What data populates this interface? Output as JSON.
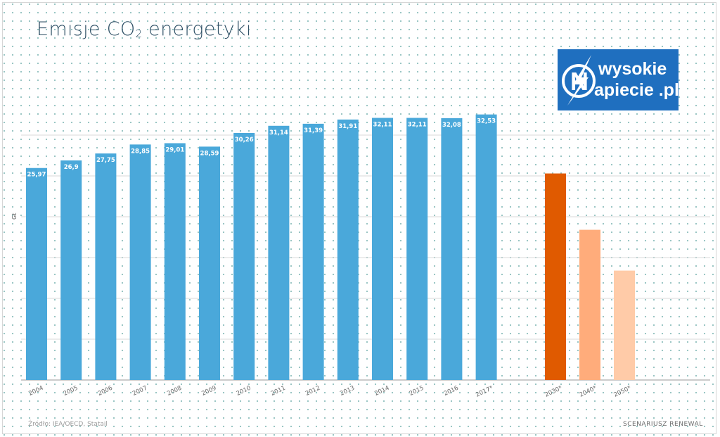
{
  "title": {
    "main": "Emisje CO",
    "subscript": "2",
    "rest": " energetyki"
  },
  "logo": {
    "line1": "wysokie",
    "line2": "apiecie .pl",
    "first_letter": "N"
  },
  "source": "Źródło: IEA/OECD, Statail",
  "scenario_note": "SCENARIUSZ RENEWAL",
  "colors": {
    "historical": "#4aa8da",
    "projection_2030": "#e05a00",
    "projection_2040": "#ffac7b",
    "projection_2050": "#ffcba8",
    "logo_bg": "#1f6fbf"
  },
  "chart_data": {
    "type": "bar",
    "title": "Emisje CO2 energetyki",
    "ylabel": "Gt",
    "xlabel": "",
    "ylim": [
      0,
      40
    ],
    "grid": true,
    "categories": [
      "2004",
      "2005",
      "2006",
      "2007",
      "2008",
      "2009",
      "2010",
      "2011",
      "2012",
      "2013",
      "2014",
      "2015",
      "2016",
      "2017*",
      "2030*",
      "2040*",
      "2050*"
    ],
    "series": [
      {
        "values": [
          25.97,
          26.9,
          27.75,
          28.85,
          29.01,
          28.59,
          30.26,
          31.14,
          31.39,
          31.91,
          32.11,
          32.11,
          32.08,
          32.53,
          null,
          null,
          null
        ],
        "data_labels": [
          "25,97",
          "26,9",
          "27,75",
          "28,85",
          "29,01",
          "28,59",
          "30,26",
          "31,14",
          "31,39",
          "31,91",
          "32,11",
          "32,11",
          "32,08",
          "32,53",
          "",
          "",
          ""
        ]
      },
      {
        "values": [
          null,
          null,
          null,
          null,
          null,
          null,
          null,
          null,
          null,
          null,
          null,
          null,
          null,
          null,
          25.3,
          18.4,
          13.4
        ],
        "data_labels": [
          "",
          "",
          "",
          "",
          "",
          "",
          "",
          "",
          "",
          "",
          "",
          "",
          "",
          "",
          "",
          "",
          ""
        ]
      }
    ]
  }
}
